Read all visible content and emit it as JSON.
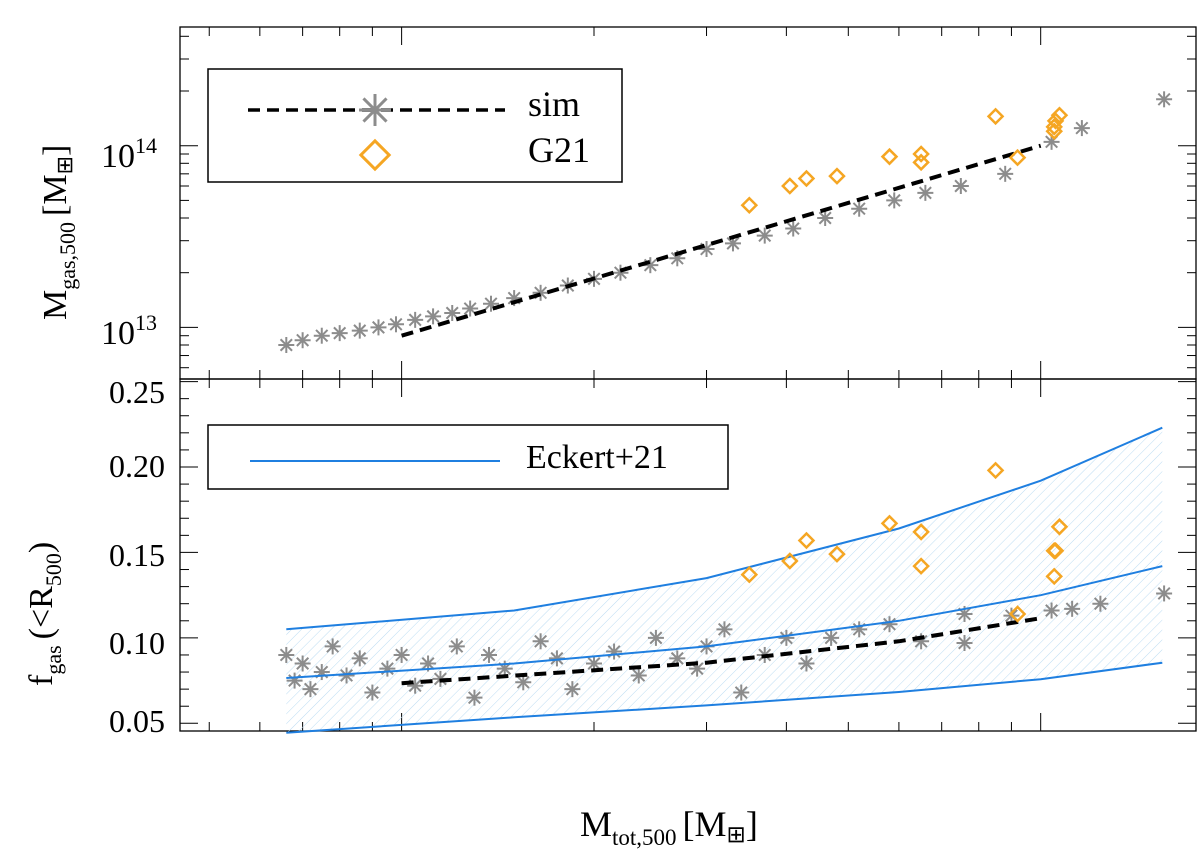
{
  "chart_data": [
    {
      "type": "scatter",
      "panel": "top",
      "ylabel": {
        "base": "M",
        "sub": "gas,500",
        "unit": "[M",
        "unit_close": "]"
      },
      "yscale": "log",
      "ylim": [
        5200000000000,
        450000000000000
      ],
      "xscale": "log",
      "xlim": [
        45000000000000,
        1750000000000000
      ],
      "yticks_major": [
        {
          "value": 10000000000000,
          "base": "10",
          "exp": "13"
        },
        {
          "value": 100000000000000,
          "base": "10",
          "exp": "14"
        }
      ],
      "legend": {
        "placement": "top-left",
        "entries": [
          {
            "label": "sim",
            "style": "dashed-black-with-gray-asterisk"
          },
          {
            "label": "G21",
            "style": "orange-diamond"
          }
        ]
      },
      "series": [
        {
          "name": "sim fit",
          "style": "dashed",
          "color": "#000000",
          "x": [
            100000000000000,
            1000000000000000
          ],
          "y": [
            9000000000000,
            100000000000000
          ]
        },
        {
          "name": "sim",
          "marker": "asterisk",
          "color": "#8c8c8c",
          "x": [
            66000000000000,
            70000000000000,
            75000000000000,
            80000000000000,
            86000000000000,
            92000000000000,
            98000000000000,
            105000000000000,
            112000000000000,
            120000000000000,
            128000000000000,
            138000000000000,
            150000000000000,
            165000000000000,
            182000000000000,
            200000000000000,
            220000000000000,
            245000000000000,
            270000000000000,
            300000000000000,
            330000000000000,
            370000000000000,
            410000000000000,
            460000000000000,
            520000000000000,
            590000000000000,
            660000000000000,
            750000000000000,
            880000000000000,
            1040000000000000,
            1160000000000000,
            1560000000000000
          ],
          "y": [
            8000000000000,
            8500000000000,
            9000000000000,
            9300000000000,
            9600000000000,
            10000000000000,
            10400000000000,
            11000000000000,
            11500000000000,
            12000000000000,
            12700000000000,
            13500000000000,
            14500000000000,
            15500000000000,
            17000000000000,
            18500000000000,
            20000000000000,
            22000000000000,
            24000000000000,
            27000000000000,
            29000000000000,
            32000000000000,
            35000000000000,
            40000000000000,
            45000000000000,
            50000000000000,
            55000000000000,
            60000000000000,
            70000000000000,
            105000000000000,
            125000000000000,
            180000000000000
          ]
        },
        {
          "name": "G21",
          "marker": "diamond",
          "color": "#f5a623",
          "x": [
            350000000000000,
            405000000000000,
            430000000000000,
            480000000000000,
            580000000000000,
            650000000000000,
            650000000000000,
            850000000000000,
            920000000000000,
            1050000000000000,
            1050000000000000,
            1055000000000000,
            1070000000000000
          ],
          "y": [
            47000000000000,
            60000000000000,
            66000000000000,
            68000000000000,
            87000000000000,
            90000000000000,
            81000000000000,
            145000000000000,
            86000000000000,
            120000000000000,
            127000000000000,
            137000000000000,
            147000000000000
          ]
        }
      ]
    },
    {
      "type": "scatter",
      "panel": "bottom",
      "ylabel": {
        "base": "f",
        "sub": "gas",
        "paren": "(<R",
        "sub2": "500",
        "paren_close": ")"
      },
      "yscale": "linear",
      "ylim": [
        0.0455,
        0.2515
      ],
      "yticks_major": [
        "0.05",
        "0.10",
        "0.15",
        "0.20",
        "0.25"
      ],
      "xscale": "log",
      "xlim": [
        45000000000000,
        1750000000000000
      ],
      "xlabel": {
        "base": "M",
        "sub": "tot,500",
        "unit": "[M",
        "unit_close": "]"
      },
      "legend": {
        "placement": "top-left",
        "entries": [
          {
            "label": "Eckert+21",
            "style": "solid-blue-line"
          }
        ]
      },
      "series": [
        {
          "name": "Eckert+21 upper",
          "style": "solid",
          "color": "#1f7fe0",
          "x": [
            66000000000000,
            150000000000000,
            300000000000000,
            600000000000000,
            1000000000000000,
            1550000000000000
          ],
          "y": [
            0.105,
            0.116,
            0.135,
            0.164,
            0.192,
            0.223
          ]
        },
        {
          "name": "Eckert+21",
          "style": "solid",
          "color": "#1f7fe0",
          "x": [
            66000000000000,
            150000000000000,
            300000000000000,
            600000000000000,
            1000000000000000,
            1550000000000000
          ],
          "y": [
            0.0765,
            0.085,
            0.095,
            0.11,
            0.125,
            0.142
          ]
        },
        {
          "name": "Eckert+21 lower",
          "style": "solid",
          "color": "#1f7fe0",
          "x": [
            66000000000000,
            150000000000000,
            300000000000000,
            600000000000000,
            1000000000000000,
            1550000000000000
          ],
          "y": [
            0.0445,
            0.0535,
            0.0605,
            0.0683,
            0.0758,
            0.0855
          ]
        },
        {
          "name": "sim fit",
          "style": "dashed",
          "color": "#000000",
          "x": [
            100000000000000,
            300000000000000,
            600000000000000,
            1000000000000000
          ],
          "y": [
            0.0735,
            0.0855,
            0.098,
            0.1115
          ]
        },
        {
          "name": "sim",
          "marker": "asterisk",
          "color": "#8c8c8c",
          "x": [
            66000000000000,
            68000000000000,
            70000000000000,
            72000000000000,
            75000000000000,
            78000000000000,
            82000000000000,
            86000000000000,
            90000000000000,
            95000000000000,
            100000000000000,
            105000000000000,
            110000000000000,
            115000000000000,
            122000000000000,
            130000000000000,
            137000000000000,
            145000000000000,
            155000000000000,
            165000000000000,
            175000000000000,
            185000000000000,
            200000000000000,
            215000000000000,
            235000000000000,
            250000000000000,
            270000000000000,
            290000000000000,
            300000000000000,
            320000000000000,
            340000000000000,
            370000000000000,
            400000000000000,
            430000000000000,
            470000000000000,
            520000000000000,
            580000000000000,
            650000000000000,
            760000000000000,
            760000000000000,
            900000000000000,
            1040000000000000,
            1120000000000000,
            1240000000000000,
            1560000000000000
          ],
          "y": [
            0.09,
            0.075,
            0.085,
            0.07,
            0.08,
            0.095,
            0.078,
            0.088,
            0.068,
            0.082,
            0.09,
            0.072,
            0.085,
            0.076,
            0.095,
            0.065,
            0.09,
            0.082,
            0.074,
            0.098,
            0.088,
            0.07,
            0.085,
            0.092,
            0.078,
            0.1,
            0.088,
            0.082,
            0.095,
            0.105,
            0.068,
            0.09,
            0.1,
            0.085,
            0.1,
            0.105,
            0.108,
            0.098,
            0.097,
            0.114,
            0.113,
            0.116,
            0.117,
            0.12,
            0.126
          ]
        },
        {
          "name": "G21",
          "marker": "diamond",
          "color": "#f5a623",
          "x": [
            350000000000000,
            405000000000000,
            430000000000000,
            480000000000000,
            580000000000000,
            650000000000000,
            650000000000000,
            850000000000000,
            920000000000000,
            1050000000000000,
            1050000000000000,
            1055000000000000,
            1070000000000000
          ],
          "y": [
            0.137,
            0.145,
            0.157,
            0.149,
            0.167,
            0.142,
            0.162,
            0.198,
            0.114,
            0.136,
            0.151,
            0.151,
            0.165
          ]
        }
      ]
    }
  ]
}
